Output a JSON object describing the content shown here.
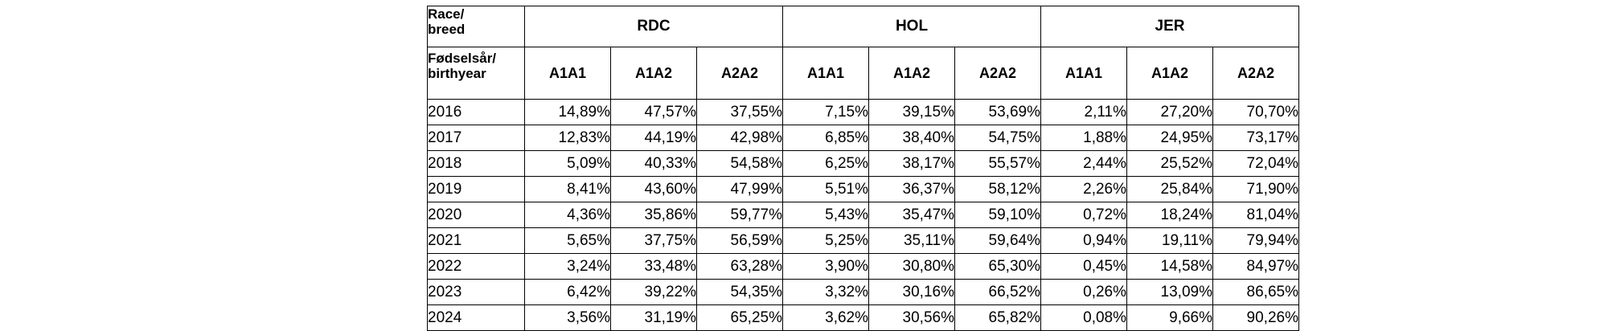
{
  "table": {
    "corner_top": "Race/\nbreed",
    "corner_bottom": "Fødselsår/\nbirthyear",
    "groups": [
      "RDC",
      "HOL",
      "JER"
    ],
    "genotypes": [
      "A1A1",
      "A1A2",
      "A2A2"
    ],
    "rows": [
      {
        "year": "2016",
        "values": [
          "14,89%",
          "47,57%",
          "37,55%",
          "7,15%",
          "39,15%",
          "53,69%",
          "2,11%",
          "27,20%",
          "70,70%"
        ]
      },
      {
        "year": "2017",
        "values": [
          "12,83%",
          "44,19%",
          "42,98%",
          "6,85%",
          "38,40%",
          "54,75%",
          "1,88%",
          "24,95%",
          "73,17%"
        ]
      },
      {
        "year": "2018",
        "values": [
          "5,09%",
          "40,33%",
          "54,58%",
          "6,25%",
          "38,17%",
          "55,57%",
          "2,44%",
          "25,52%",
          "72,04%"
        ]
      },
      {
        "year": "2019",
        "values": [
          "8,41%",
          "43,60%",
          "47,99%",
          "5,51%",
          "36,37%",
          "58,12%",
          "2,26%",
          "25,84%",
          "71,90%"
        ]
      },
      {
        "year": "2020",
        "values": [
          "4,36%",
          "35,86%",
          "59,77%",
          "5,43%",
          "35,47%",
          "59,10%",
          "0,72%",
          "18,24%",
          "81,04%"
        ]
      },
      {
        "year": "2021",
        "values": [
          "5,65%",
          "37,75%",
          "56,59%",
          "5,25%",
          "35,11%",
          "59,64%",
          "0,94%",
          "19,11%",
          "79,94%"
        ]
      },
      {
        "year": "2022",
        "values": [
          "3,24%",
          "33,48%",
          "63,28%",
          "3,90%",
          "30,80%",
          "65,30%",
          "0,45%",
          "14,58%",
          "84,97%"
        ]
      },
      {
        "year": "2023",
        "values": [
          "6,42%",
          "39,22%",
          "54,35%",
          "3,32%",
          "30,16%",
          "66,52%",
          "0,26%",
          "13,09%",
          "86,65%"
        ]
      },
      {
        "year": "2024",
        "values": [
          "3,56%",
          "31,19%",
          "65,25%",
          "3,62%",
          "30,56%",
          "65,82%",
          "0,08%",
          "9,66%",
          "90,26%"
        ]
      }
    ]
  }
}
